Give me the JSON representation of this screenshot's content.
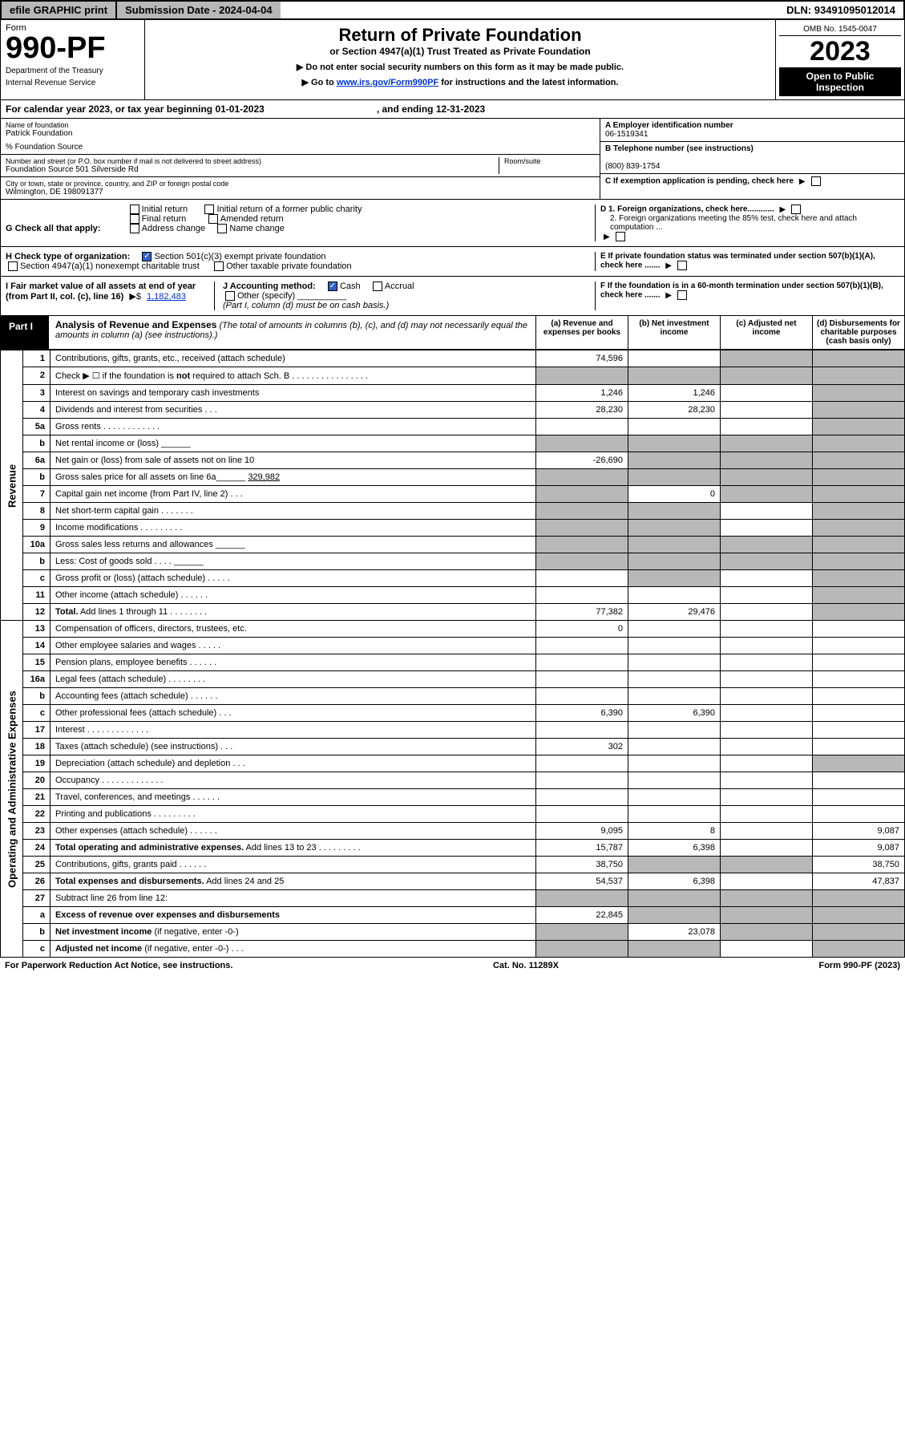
{
  "topbar": {
    "efile": "efile GRAPHIC print",
    "submission": "Submission Date - 2024-04-04",
    "dln": "DLN: 93491095012014"
  },
  "header": {
    "form_word": "Form",
    "form_code": "990-PF",
    "dept": "Department of the Treasury",
    "irs": "Internal Revenue Service",
    "title": "Return of Private Foundation",
    "subtitle1": "or Section 4947(a)(1) Trust Treated as Private Foundation",
    "subtitle2a": "▶ Do not enter social security numbers on this form as it may be made public.",
    "subtitle2b": "▶ Go to ",
    "subtitle2_link": "www.irs.gov/Form990PF",
    "subtitle2c": " for instructions and the latest information.",
    "omb": "OMB No. 1545-0047",
    "year": "2023",
    "open": "Open to Public Inspection"
  },
  "calyear": {
    "text1": "For calendar year 2023, or tax year beginning 01-01-2023",
    "text2": ", and ending 12-31-2023"
  },
  "info": {
    "name_lbl": "Name of foundation",
    "name": "Patrick Foundation",
    "co": "% Foundation Source",
    "addr_lbl": "Number and street (or P.O. box number if mail is not delivered to street address)",
    "addr": "Foundation Source 501 Silverside Rd",
    "room_lbl": "Room/suite",
    "city_lbl": "City or town, state or province, country, and ZIP or foreign postal code",
    "city": "Wilmington, DE  198091377",
    "ein_lbl": "A Employer identification number",
    "ein": "06-1519341",
    "phone_lbl": "B Telephone number (see instructions)",
    "phone": "(800) 839-1754",
    "c_lbl": "C If exemption application is pending, check here",
    "d1": "D 1. Foreign organizations, check here............",
    "d2": "2. Foreign organizations meeting the 85% test, check here and attach computation ...",
    "e_lbl": "E  If private foundation status was terminated under section 507(b)(1)(A), check here .......",
    "f_lbl": "F  If the foundation is in a 60-month termination under section 507(b)(1)(B), check here ......."
  },
  "g": {
    "label": "G Check all that apply:",
    "opts": [
      "Initial return",
      "Final return",
      "Address change",
      "Initial return of a former public charity",
      "Amended return",
      "Name change"
    ]
  },
  "h": {
    "label": "H Check type of organization:",
    "opt1": "Section 501(c)(3) exempt private foundation",
    "opt2": "Section 4947(a)(1) nonexempt charitable trust",
    "opt3": "Other taxable private foundation"
  },
  "i": {
    "label": "I Fair market value of all assets at end of year (from Part II, col. (c), line 16)",
    "value": "1,182,483"
  },
  "j": {
    "label": "J Accounting method:",
    "cash": "Cash",
    "accrual": "Accrual",
    "other": "Other (specify)",
    "note": "(Part I, column (d) must be on cash basis.)"
  },
  "part1": {
    "tab": "Part I",
    "title": "Analysis of Revenue and Expenses",
    "note": "(The total of amounts in columns (b), (c), and (d) may not necessarily equal the amounts in column (a) (see instructions).)",
    "col_a": "(a)   Revenue and expenses per books",
    "col_b": "(b)   Net investment income",
    "col_c": "(c)   Adjusted net income",
    "col_d": "(d)   Disbursements for charitable purposes (cash basis only)"
  },
  "side": {
    "rev": "Revenue",
    "exp": "Operating and Administrative Expenses"
  },
  "rows": [
    {
      "n": "1",
      "d": "",
      "a": "74,596",
      "b": "",
      "c": "",
      "grey": [
        "c",
        "d"
      ]
    },
    {
      "n": "2",
      "d": "",
      "a": "",
      "b": "",
      "c": "",
      "grey": [
        "a",
        "b",
        "c",
        "d"
      ]
    },
    {
      "n": "3",
      "d": "",
      "a": "1,246",
      "b": "1,246",
      "c": "",
      "grey": [
        "d"
      ]
    },
    {
      "n": "4",
      "d": "",
      "a": "28,230",
      "b": "28,230",
      "c": "",
      "grey": [
        "d"
      ]
    },
    {
      "n": "5a",
      "d": "",
      "a": "",
      "b": "",
      "c": "",
      "grey": [
        "d"
      ]
    },
    {
      "n": "b",
      "d": "",
      "a": "",
      "b": "",
      "c": "",
      "grey": [
        "a",
        "b",
        "c",
        "d"
      ]
    },
    {
      "n": "6a",
      "d": "",
      "a": "-26,690",
      "b": "",
      "c": "",
      "grey": [
        "b",
        "c",
        "d"
      ]
    },
    {
      "n": "b",
      "d": "",
      "a": "",
      "b": "",
      "c": "",
      "grey": [
        "a",
        "b",
        "c",
        "d"
      ]
    },
    {
      "n": "7",
      "d": "",
      "a": "",
      "b": "0",
      "c": "",
      "grey": [
        "a",
        "c",
        "d"
      ]
    },
    {
      "n": "8",
      "d": "",
      "a": "",
      "b": "",
      "c": "",
      "grey": [
        "a",
        "b",
        "d"
      ]
    },
    {
      "n": "9",
      "d": "",
      "a": "",
      "b": "",
      "c": "",
      "grey": [
        "a",
        "b",
        "d"
      ]
    },
    {
      "n": "10a",
      "d": "",
      "a": "",
      "b": "",
      "c": "",
      "grey": [
        "a",
        "b",
        "c",
        "d"
      ]
    },
    {
      "n": "b",
      "d": "",
      "a": "",
      "b": "",
      "c": "",
      "grey": [
        "a",
        "b",
        "c",
        "d"
      ]
    },
    {
      "n": "c",
      "d": "",
      "a": "",
      "b": "",
      "c": "",
      "grey": [
        "b",
        "d"
      ]
    },
    {
      "n": "11",
      "d": "",
      "a": "",
      "b": "",
      "c": "",
      "grey": [
        "d"
      ]
    },
    {
      "n": "12",
      "d": "",
      "a": "77,382",
      "b": "29,476",
      "c": "",
      "grey": [
        "d"
      ]
    },
    {
      "n": "13",
      "d": "",
      "a": "0",
      "b": "",
      "c": ""
    },
    {
      "n": "14",
      "d": "",
      "a": "",
      "b": "",
      "c": ""
    },
    {
      "n": "15",
      "d": "",
      "a": "",
      "b": "",
      "c": ""
    },
    {
      "n": "16a",
      "d": "",
      "a": "",
      "b": "",
      "c": ""
    },
    {
      "n": "b",
      "d": "",
      "a": "",
      "b": "",
      "c": ""
    },
    {
      "n": "c",
      "d": "",
      "a": "6,390",
      "b": "6,390",
      "c": ""
    },
    {
      "n": "17",
      "d": "",
      "a": "",
      "b": "",
      "c": ""
    },
    {
      "n": "18",
      "d": "",
      "a": "302",
      "b": "",
      "c": ""
    },
    {
      "n": "19",
      "d": "",
      "a": "",
      "b": "",
      "c": "",
      "grey": [
        "d"
      ]
    },
    {
      "n": "20",
      "d": "",
      "a": "",
      "b": "",
      "c": ""
    },
    {
      "n": "21",
      "d": "",
      "a": "",
      "b": "",
      "c": ""
    },
    {
      "n": "22",
      "d": "",
      "a": "",
      "b": "",
      "c": ""
    },
    {
      "n": "23",
      "d": "9,087",
      "a": "9,095",
      "b": "8",
      "c": ""
    },
    {
      "n": "24",
      "d": "9,087",
      "a": "15,787",
      "b": "6,398",
      "c": ""
    },
    {
      "n": "25",
      "d": "38,750",
      "a": "38,750",
      "b": "",
      "c": "",
      "grey": [
        "b",
        "c"
      ]
    },
    {
      "n": "26",
      "d": "47,837",
      "a": "54,537",
      "b": "6,398",
      "c": ""
    },
    {
      "n": "27",
      "d": "",
      "a": "",
      "b": "",
      "c": "",
      "grey": [
        "a",
        "b",
        "c",
        "d"
      ]
    },
    {
      "n": "a",
      "d": "",
      "a": "22,845",
      "b": "",
      "c": "",
      "grey": [
        "b",
        "c",
        "d"
      ]
    },
    {
      "n": "b",
      "d": "",
      "a": "",
      "b": "23,078",
      "c": "",
      "grey": [
        "a",
        "c",
        "d"
      ]
    },
    {
      "n": "c",
      "d": "",
      "a": "",
      "b": "",
      "c": "",
      "grey": [
        "a",
        "b",
        "d"
      ]
    }
  ],
  "footer": {
    "left": "For Paperwork Reduction Act Notice, see instructions.",
    "mid": "Cat. No. 11289X",
    "right": "Form 990-PF (2023)"
  }
}
